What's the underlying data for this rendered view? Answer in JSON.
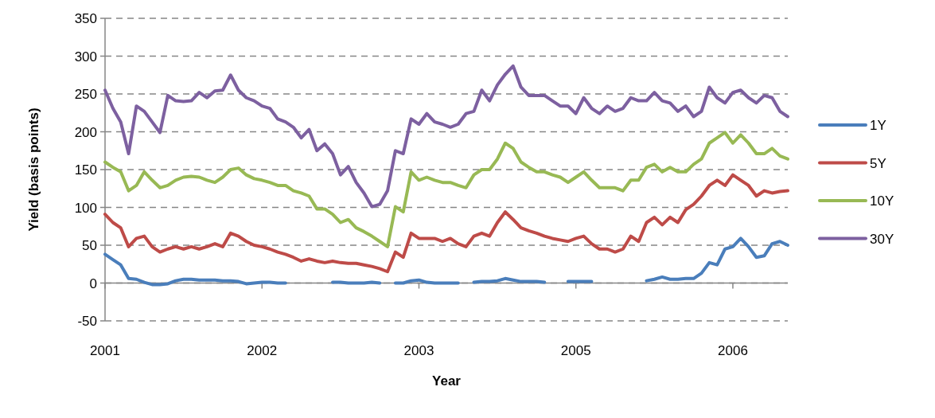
{
  "chart_data": {
    "type": "line",
    "xlabel": "Year",
    "ylabel": "Yield (basis points)",
    "categories": [
      "2001",
      null,
      null,
      null,
      null,
      null,
      null,
      null,
      null,
      null,
      null,
      null,
      null,
      null,
      null,
      null,
      null,
      null,
      null,
      null,
      "2002",
      null,
      null,
      null,
      null,
      null,
      null,
      null,
      null,
      null,
      null,
      null,
      null,
      null,
      null,
      null,
      null,
      null,
      null,
      null,
      "2003",
      null,
      null,
      null,
      null,
      null,
      null,
      null,
      null,
      null,
      null,
      null,
      null,
      null,
      null,
      null,
      null,
      null,
      null,
      null,
      "2005",
      null,
      null,
      null,
      null,
      null,
      null,
      null,
      null,
      null,
      null,
      null,
      null,
      null,
      null,
      null,
      null,
      null,
      null,
      null,
      "2006",
      null,
      null,
      null,
      null,
      null,
      null,
      null
    ],
    "ylim": [
      -50,
      350
    ],
    "yticks": [
      -50,
      0,
      50,
      100,
      150,
      200,
      250,
      300,
      350
    ],
    "grid": "y",
    "legend": "right",
    "marker": "none",
    "line_style": "solid",
    "series": [
      {
        "name": "1Y",
        "color": "#4a7ebb",
        "values": [
          38,
          31,
          24,
          6,
          5,
          1,
          -2,
          -2,
          -1,
          3,
          5,
          5,
          4,
          4,
          4,
          3,
          3,
          2,
          -1,
          0,
          1,
          1,
          0,
          0,
          null,
          null,
          null,
          null,
          null,
          1,
          1,
          0,
          0,
          0,
          1,
          0,
          null,
          0,
          0,
          3,
          4,
          1,
          0,
          0,
          0,
          0,
          null,
          1,
          2,
          2,
          3,
          6,
          4,
          2,
          2,
          2,
          1,
          null,
          null,
          2,
          2,
          2,
          2,
          null,
          null,
          null,
          null,
          null,
          null,
          3,
          5,
          8,
          5,
          5,
          6,
          6,
          13,
          27,
          24,
          45,
          48,
          59,
          48,
          34,
          36,
          52,
          55,
          50
        ]
      },
      {
        "name": "5Y",
        "color": "#be4b48",
        "values": [
          91,
          80,
          73,
          48,
          59,
          62,
          48,
          41,
          45,
          48,
          45,
          48,
          45,
          48,
          52,
          48,
          66,
          62,
          55,
          50,
          48,
          45,
          41,
          38,
          34,
          29,
          32,
          29,
          27,
          29,
          27,
          26,
          26,
          24,
          22,
          19,
          15,
          41,
          34,
          66,
          59,
          59,
          59,
          55,
          59,
          52,
          48,
          62,
          66,
          62,
          80,
          94,
          84,
          73,
          69,
          66,
          62,
          59,
          57,
          55,
          59,
          62,
          52,
          45,
          45,
          41,
          45,
          62,
          55,
          80,
          87,
          77,
          87,
          80,
          97,
          104,
          115,
          129,
          136,
          129,
          143,
          136,
          129,
          115,
          122,
          119,
          121,
          122
        ]
      },
      {
        "name": "10Y",
        "color": "#98b954",
        "values": [
          160,
          153,
          147,
          122,
          129,
          147,
          136,
          126,
          129,
          136,
          140,
          141,
          140,
          136,
          133,
          140,
          150,
          152,
          143,
          138,
          136,
          133,
          129,
          129,
          122,
          119,
          115,
          98,
          98,
          91,
          80,
          84,
          73,
          68,
          62,
          55,
          48,
          101,
          94,
          147,
          136,
          140,
          136,
          133,
          133,
          129,
          126,
          143,
          150,
          150,
          164,
          185,
          178,
          160,
          153,
          147,
          147,
          143,
          140,
          133,
          140,
          147,
          136,
          126,
          126,
          126,
          122,
          136,
          136,
          153,
          157,
          147,
          153,
          147,
          147,
          157,
          164,
          185,
          192,
          199,
          185,
          196,
          185,
          171,
          171,
          178,
          168,
          164
        ]
      },
      {
        "name": "30Y",
        "color": "#7d60a0",
        "values": [
          255,
          231,
          213,
          171,
          234,
          227,
          213,
          199,
          248,
          241,
          240,
          241,
          252,
          245,
          254,
          255,
          275,
          255,
          245,
          241,
          234,
          231,
          217,
          213,
          206,
          192,
          203,
          175,
          184,
          171,
          143,
          154,
          133,
          119,
          101,
          104,
          122,
          175,
          171,
          217,
          210,
          224,
          213,
          210,
          206,
          210,
          224,
          227,
          255,
          241,
          262,
          276,
          287,
          259,
          248,
          248,
          248,
          241,
          234,
          234,
          224,
          245,
          231,
          224,
          234,
          227,
          231,
          245,
          241,
          241,
          252,
          241,
          238,
          227,
          234,
          220,
          227,
          259,
          245,
          238,
          252,
          255,
          245,
          238,
          248,
          245,
          227,
          220
        ]
      }
    ]
  }
}
